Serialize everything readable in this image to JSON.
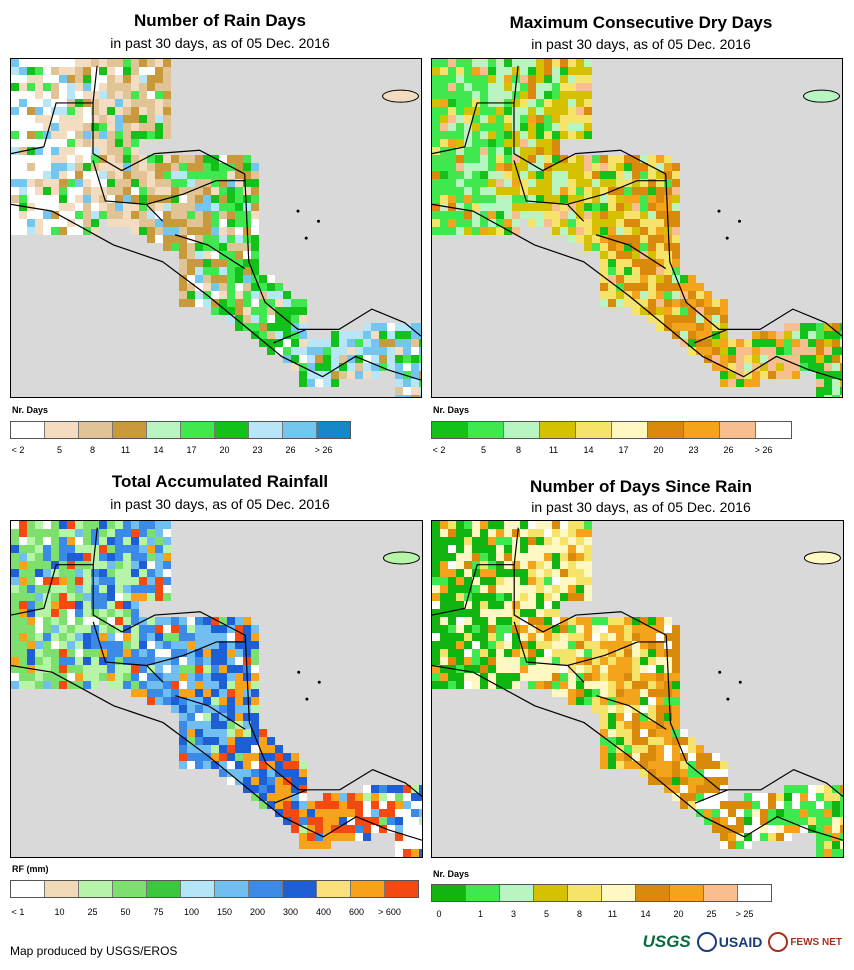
{
  "colors": {
    "ocean": "#d9d9d9",
    "land_default": "#ffffff",
    "border": "#000000"
  },
  "panels": [
    {
      "id": "rain-days",
      "title": "Number of Rain Days",
      "subtitle": "in past 30 days, as of 05 Dec. 2016",
      "legend_unit": "Nr. Days",
      "legend_colors": [
        "#ffffff",
        "#f3dcbf",
        "#e0c496",
        "#c89a3c",
        "#b9f5c1",
        "#3ee84e",
        "#12c21a",
        "#b8e6f8",
        "#72c6ef",
        "#1688c8"
      ],
      "legend_labels": [
        "< 2",
        "5",
        "8",
        "11",
        "14",
        "17",
        "20",
        "23",
        "26",
        "> 26"
      ],
      "map_colors": [
        "#ffffff",
        "#f3dcbf",
        "#e0c496",
        "#c89a3c",
        "#3ee84e",
        "#12c21a",
        "#b8e6f8",
        "#72c6ef"
      ]
    },
    {
      "id": "max-dry-days",
      "title": "Maximum Consecutive Dry Days",
      "subtitle": "in past 30 days, as of 05 Dec. 2016",
      "legend_unit": "Nr. Days",
      "legend_colors": [
        "#12c21a",
        "#3ee84e",
        "#b9f5c1",
        "#d4c200",
        "#f5e36a",
        "#fff8c2",
        "#d9890b",
        "#f4a41a",
        "#f9be90",
        "#ffffff"
      ],
      "legend_labels": [
        "< 2",
        "5",
        "8",
        "11",
        "14",
        "17",
        "20",
        "23",
        "26",
        "> 26"
      ],
      "map_colors": [
        "#3ee84e",
        "#b9f5c1",
        "#d4c200",
        "#f5e36a",
        "#d9890b",
        "#f4a41a",
        "#f9be90",
        "#12c21a"
      ]
    },
    {
      "id": "total-rainfall",
      "title": "Total Accumulated Rainfall",
      "subtitle": "in past 30 days, as of 05 Dec. 2016",
      "legend_unit": "RF (mm)",
      "legend_colors": [
        "#ffffff",
        "#f0d9b5",
        "#b6f5a8",
        "#7ddf6e",
        "#3cc83c",
        "#b5e6f7",
        "#70bff0",
        "#3a8ae6",
        "#1f5fd4",
        "#f8e07a",
        "#f6a21a",
        "#f24a10"
      ],
      "legend_labels": [
        "< 1",
        "10",
        "25",
        "50",
        "75",
        "100",
        "150",
        "200",
        "300",
        "400",
        "600",
        "> 600"
      ],
      "map_colors": [
        "#7ddf6e",
        "#b6f5a8",
        "#3a8ae6",
        "#70bff0",
        "#1f5fd4",
        "#f6a21a",
        "#f24a10",
        "#ffffff"
      ]
    },
    {
      "id": "days-since-rain",
      "title": "Number of Days Since Rain",
      "subtitle": "in past 30 days, as of 05 Dec. 2016",
      "legend_unit": "Nr. Days",
      "legend_colors": [
        "#12b412",
        "#3ee84e",
        "#b9f5c1",
        "#d4c200",
        "#f5e36a",
        "#fff8c2",
        "#d9890b",
        "#f4a41a",
        "#f9be90",
        "#ffffff"
      ],
      "legend_labels": [
        "0",
        "1",
        "3",
        "5",
        "8",
        "11",
        "14",
        "20",
        "25",
        "> 25"
      ],
      "map_colors": [
        "#12b412",
        "#fff8c2",
        "#f5e36a",
        "#f4a41a",
        "#d9890b",
        "#ffffff",
        "#3ee84e"
      ]
    }
  ],
  "footer": {
    "credit": "Map produced by USGS/EROS",
    "logos": [
      "USGS",
      "USAID",
      "FEWS NET"
    ]
  }
}
